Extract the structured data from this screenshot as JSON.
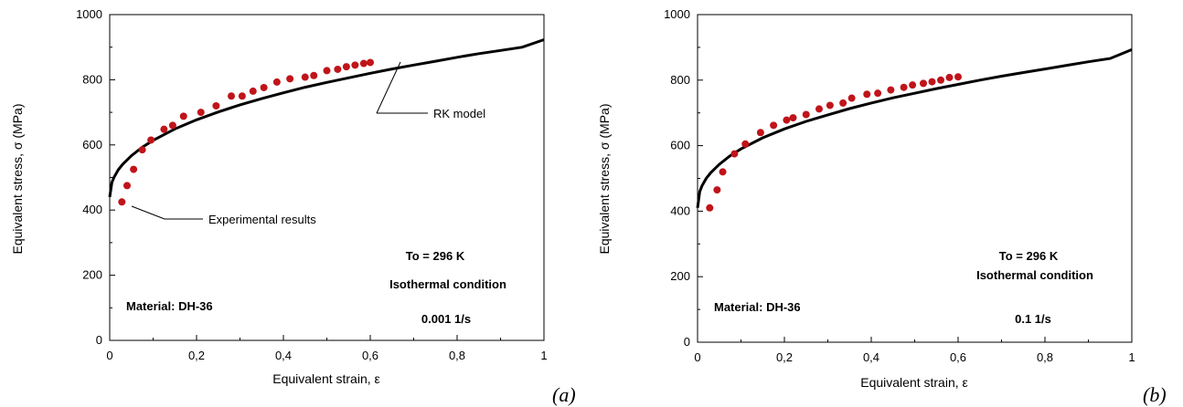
{
  "chart_data": [
    {
      "type": "line",
      "panel_label": "(a)",
      "xlabel": "Equivalent strain, ε",
      "ylabel": "Equivalent stress, σ (MPa)",
      "xlim": [
        0,
        1
      ],
      "ylim": [
        0,
        1000
      ],
      "x_ticks": [
        "0",
        "0,2",
        "0,4",
        "0,6",
        "0,8",
        "1"
      ],
      "y_ticks": [
        "0",
        "200",
        "400",
        "600",
        "800",
        "1000"
      ],
      "grid": false,
      "series": [
        {
          "name": "RK model",
          "kind": "line",
          "color": "#000000",
          "x": [
            0,
            0.005,
            0.01,
            0.02,
            0.03,
            0.05,
            0.075,
            0.1,
            0.15,
            0.2,
            0.25,
            0.3,
            0.35,
            0.4,
            0.45,
            0.5,
            0.55,
            0.6,
            0.65,
            0.7,
            0.75,
            0.8,
            0.85,
            0.9,
            0.95,
            1.0
          ],
          "y": [
            440,
            485,
            501,
            524,
            541,
            567,
            593,
            614,
            649,
            677,
            701,
            723,
            742,
            760,
            777,
            792,
            806,
            820,
            833,
            845,
            857,
            869,
            880,
            890,
            900,
            923
          ]
        },
        {
          "name": "Experimental results",
          "kind": "scatter",
          "color": "#c0141a",
          "x": [
            0.028,
            0.04,
            0.055,
            0.075,
            0.095,
            0.125,
            0.145,
            0.17,
            0.21,
            0.245,
            0.28,
            0.305,
            0.33,
            0.355,
            0.385,
            0.415,
            0.45,
            0.47,
            0.5,
            0.525,
            0.545,
            0.565,
            0.585,
            0.6
          ],
          "y": [
            425,
            475,
            525,
            585,
            615,
            648,
            660,
            688,
            700,
            720,
            750,
            750,
            765,
            776,
            793,
            803,
            808,
            813,
            828,
            832,
            840,
            845,
            850,
            853
          ]
        }
      ],
      "annotations": [
        "RK model",
        "Experimental results",
        "To = 296 K",
        "Isothermal condition",
        "Material: DH-36",
        "0.001 1/s"
      ]
    },
    {
      "type": "line",
      "panel_label": "(b)",
      "xlabel": "Equivalent strain, ε",
      "ylabel": "Equivalent stress, σ (MPa)",
      "xlim": [
        0,
        1
      ],
      "ylim": [
        0,
        1000
      ],
      "x_ticks": [
        "0",
        "0,2",
        "0,4",
        "0,6",
        "0,8",
        "1"
      ],
      "y_ticks": [
        "0",
        "200",
        "400",
        "600",
        "800",
        "1000"
      ],
      "grid": false,
      "series": [
        {
          "kind": "line",
          "color": "#000000",
          "x": [
            0,
            0.005,
            0.01,
            0.02,
            0.03,
            0.05,
            0.075,
            0.1,
            0.15,
            0.2,
            0.25,
            0.3,
            0.35,
            0.4,
            0.45,
            0.5,
            0.55,
            0.6,
            0.65,
            0.7,
            0.75,
            0.8,
            0.85,
            0.9,
            0.95,
            1.0
          ],
          "y": [
            410,
            460,
            477,
            500,
            517,
            543,
            569,
            590,
            624,
            651,
            674,
            694,
            713,
            730,
            746,
            760,
            774,
            787,
            800,
            812,
            823,
            834,
            845,
            856,
            866,
            893
          ]
        },
        {
          "kind": "scatter",
          "color": "#c0141a",
          "x": [
            0.028,
            0.045,
            0.058,
            0.085,
            0.11,
            0.145,
            0.175,
            0.205,
            0.22,
            0.25,
            0.28,
            0.305,
            0.335,
            0.355,
            0.39,
            0.415,
            0.445,
            0.475,
            0.495,
            0.52,
            0.54,
            0.56,
            0.58,
            0.6
          ],
          "y": [
            410,
            465,
            520,
            575,
            605,
            640,
            662,
            678,
            685,
            695,
            712,
            723,
            730,
            745,
            757,
            760,
            770,
            778,
            785,
            790,
            795,
            800,
            808,
            810
          ]
        }
      ],
      "annotations": [
        "To = 296 K",
        "Isothermal condition",
        "Material: DH-36",
        "0.1 1/s"
      ]
    }
  ]
}
